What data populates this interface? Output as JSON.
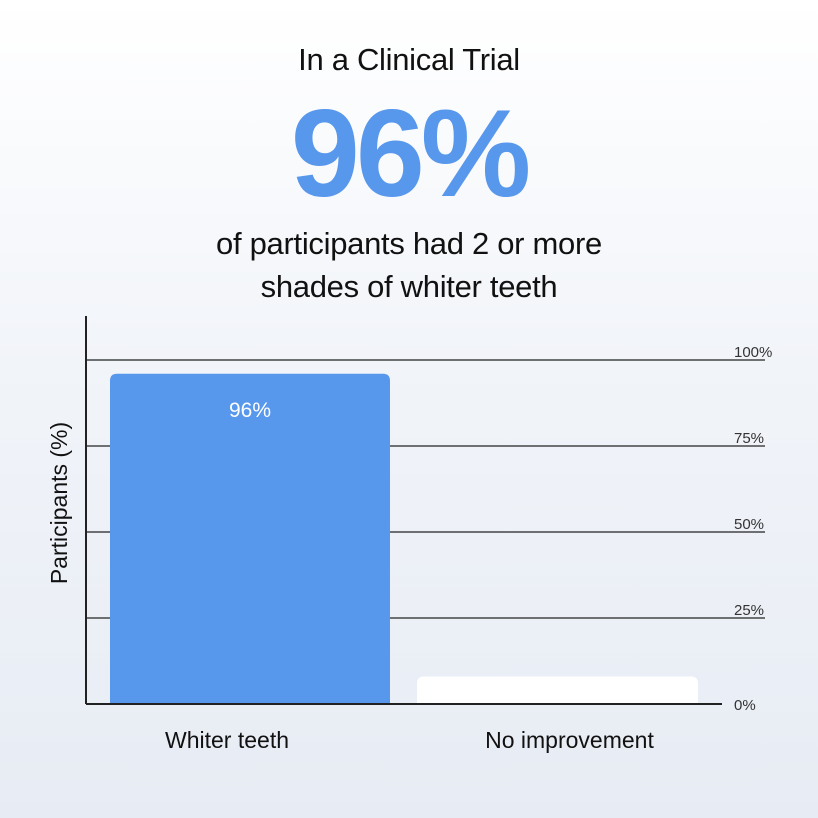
{
  "header": {
    "subtitle": "In a Clinical Trial",
    "stat": "96%",
    "tagline_line1": "of participants had 2 or more",
    "tagline_line2": "shades of whiter teeth"
  },
  "colors": {
    "accent": "#5797ec",
    "secondary_bar": "#ffffff",
    "axis": "#222222",
    "gridline": "#222222"
  },
  "chart_data": {
    "type": "bar",
    "categories": [
      "Whiter teeth",
      "No improvement"
    ],
    "values": [
      96,
      8
    ],
    "data_labels": [
      "96%",
      ""
    ],
    "title": "",
    "xlabel": "",
    "ylabel": "Participants (%)",
    "ylim": [
      0,
      100
    ],
    "yticks": [
      0,
      25,
      50,
      75,
      100
    ],
    "ytick_labels": [
      "0%",
      "25%",
      "50%",
      "75%",
      "100%"
    ],
    "grid": true,
    "legend": "none"
  }
}
